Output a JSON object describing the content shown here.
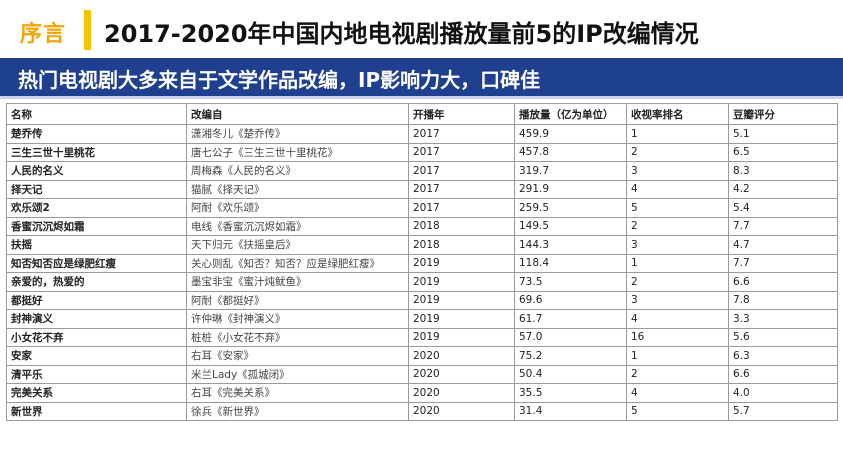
{
  "header": {
    "section_label": "序言",
    "title": "2017-2020年中国内地电视剧播放量前5的IP改编情况"
  },
  "banner": {
    "text": "热门电视剧大多来自于文学作品改编，IP影响力大，口碑佳"
  },
  "table": {
    "headers": [
      "名称",
      "改编自",
      "开播年",
      "播放量（亿为单位）",
      "收视率排名",
      "豆瓣评分"
    ],
    "rows": [
      [
        "楚乔传",
        "潇湘冬儿《楚乔传》",
        "2017",
        "459.9",
        "1",
        "5.1"
      ],
      [
        "三生三世十里桃花",
        "唐七公子《三生三世十里桃花》",
        "2017",
        "457.8",
        "2",
        "6.5"
      ],
      [
        "人民的名义",
        "周梅森《人民的名义》",
        "2017",
        "319.7",
        "3",
        "8.3"
      ],
      [
        "择天记",
        "猫腻《择天记》",
        "2017",
        "291.9",
        "4",
        "4.2"
      ],
      [
        "欢乐颂2",
        "阿耐《欢乐颂》",
        "2017",
        "259.5",
        "5",
        "5.4"
      ],
      [
        "香蜜沉沉烬如霜",
        "电线《香蜜沉沉烬如霜》",
        "2018",
        "149.5",
        "2",
        "7.7"
      ],
      [
        "扶摇",
        "天下归元《扶摇皇后》",
        "2018",
        "144.3",
        "3",
        "4.7"
      ],
      [
        "知否知否应是绿肥红瘦",
        "关心则乱《知否？知否？应是绿肥红瘦》",
        "2019",
        "118.4",
        "1",
        "7.7"
      ],
      [
        "亲爱的，热爱的",
        "墨宝非宝《蜜汁炖鱿鱼》",
        "2019",
        "73.5",
        "2",
        "6.6"
      ],
      [
        "都挺好",
        "阿耐《都挺好》",
        "2019",
        "69.6",
        "3",
        "7.8"
      ],
      [
        "封神演义",
        "许仲琳《封神演义》",
        "2019",
        "61.7",
        "4",
        "3.3"
      ],
      [
        "小女花不弃",
        "桩桩《小女花不弃》",
        "2019",
        "57.0",
        "16",
        "5.6"
      ],
      [
        "安家",
        "右耳《安家》",
        "2020",
        "75.2",
        "1",
        "6.3"
      ],
      [
        "清平乐",
        "米兰Lady《孤城闭》",
        "2020",
        "50.4",
        "2",
        "6.6"
      ],
      [
        "完美关系",
        "右耳《完美关系》",
        "2020",
        "35.5",
        "4",
        "4.0"
      ],
      [
        "新世界",
        "徐兵《新世界》",
        "2020",
        "31.4",
        "5",
        "5.7"
      ]
    ]
  }
}
